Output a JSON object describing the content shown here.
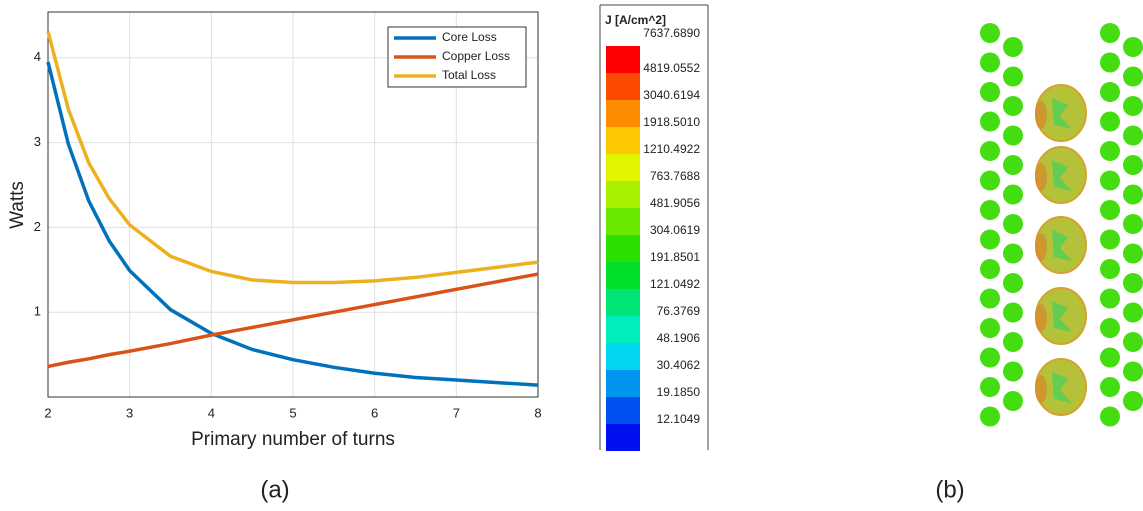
{
  "chart_data": {
    "type": "line",
    "x_label": "Primary number of turns",
    "y_label": "Watts",
    "x": [
      2,
      2.25,
      2.5,
      2.75,
      3,
      3.5,
      4,
      4.5,
      5,
      5.5,
      6,
      6.5,
      7,
      7.5,
      8
    ],
    "series": [
      {
        "name": "Core Loss",
        "color": "#0072bd",
        "values": [
          3.95,
          2.98,
          2.31,
          1.84,
          1.49,
          1.03,
          0.75,
          0.56,
          0.44,
          0.35,
          0.28,
          0.23,
          0.2,
          0.17,
          0.14
        ]
      },
      {
        "name": "Copper Loss",
        "color": "#d95319",
        "values": [
          0.36,
          0.41,
          0.45,
          0.5,
          0.54,
          0.63,
          0.73,
          0.82,
          0.91,
          1.0,
          1.09,
          1.18,
          1.27,
          1.36,
          1.45
        ]
      },
      {
        "name": "Total Loss",
        "color": "#edb120",
        "values": [
          4.31,
          3.39,
          2.76,
          2.34,
          2.03,
          1.66,
          1.48,
          1.38,
          1.35,
          1.35,
          1.37,
          1.41,
          1.47,
          1.53,
          1.59
        ]
      }
    ],
    "xlim": [
      2,
      8
    ],
    "xticks": [
      2,
      3,
      4,
      5,
      6,
      7,
      8
    ],
    "ylim": [
      0,
      4.54
    ],
    "yticks": [
      1,
      2,
      3,
      4
    ],
    "grid": true,
    "legend": "top-right"
  },
  "colorbar": {
    "title": "J [A/cm^2]",
    "labels": [
      "7637.6890",
      "4819.0552",
      "3040.6194",
      "1918.5010",
      "1210.4922",
      "763.7688",
      "481.9056",
      "304.0619",
      "191.8501",
      "121.0492",
      "76.3769",
      "48.1906",
      "30.4062",
      "19.1850",
      "12.1049"
    ],
    "colors": [
      "#fe0000",
      "#fe4a00",
      "#fe8c00",
      "#fec800",
      "#e2f500",
      "#a8f000",
      "#6ae800",
      "#2ae000",
      "#00e02a",
      "#00e676",
      "#00eebc",
      "#00d6f0",
      "#0096f0",
      "#0050f0",
      "#0010f0"
    ]
  },
  "panels": [
    "(a)",
    "(b)"
  ]
}
